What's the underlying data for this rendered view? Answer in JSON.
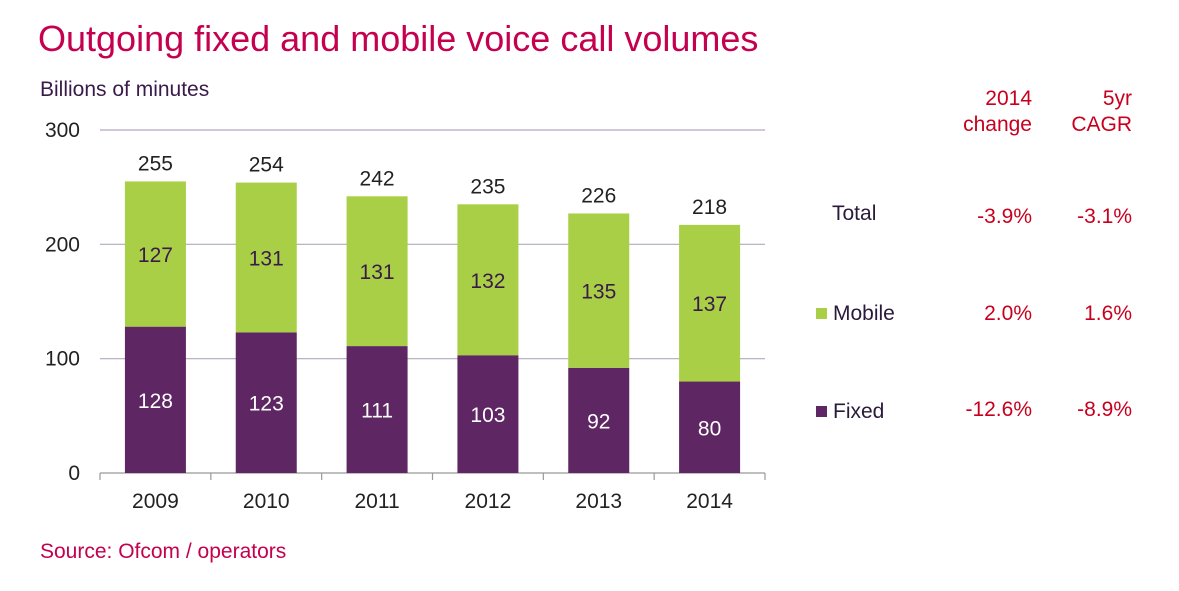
{
  "title": "Outgoing fixed and mobile voice call volumes",
  "source": "Source: Ofcom / operators",
  "colors": {
    "title": "#c4004f",
    "fixed": "#5e2663",
    "mobile": "#a8cf45",
    "table_values": "#c8001e",
    "gridline": "#b3a8bd"
  },
  "chart_data": {
    "type": "bar",
    "stacked": true,
    "ylabel": "Billions of minutes",
    "xlabel": "",
    "ylim": [
      0,
      300
    ],
    "yticks": [
      0,
      100,
      200,
      300
    ],
    "categories": [
      "2009",
      "2010",
      "2011",
      "2012",
      "2013",
      "2014"
    ],
    "series": [
      {
        "name": "Fixed",
        "values": [
          128,
          123,
          111,
          103,
          92,
          80
        ]
      },
      {
        "name": "Mobile",
        "values": [
          127,
          131,
          131,
          132,
          135,
          137
        ]
      }
    ],
    "totals": [
      255,
      254,
      242,
      235,
      226,
      218
    ],
    "grid": true
  },
  "table": {
    "headers": [
      "2014\nchange",
      "5yr\nCAGR"
    ],
    "header_lines": [
      [
        "2014",
        "change"
      ],
      [
        "5yr",
        "CAGR"
      ]
    ],
    "rows": [
      {
        "name": "Total",
        "change": "-3.9%",
        "cagr": "-3.1%"
      },
      {
        "name": "Mobile",
        "change": "2.0%",
        "cagr": "1.6%"
      },
      {
        "name": "Fixed",
        "change": "-12.6%",
        "cagr": "-8.9%"
      }
    ]
  }
}
